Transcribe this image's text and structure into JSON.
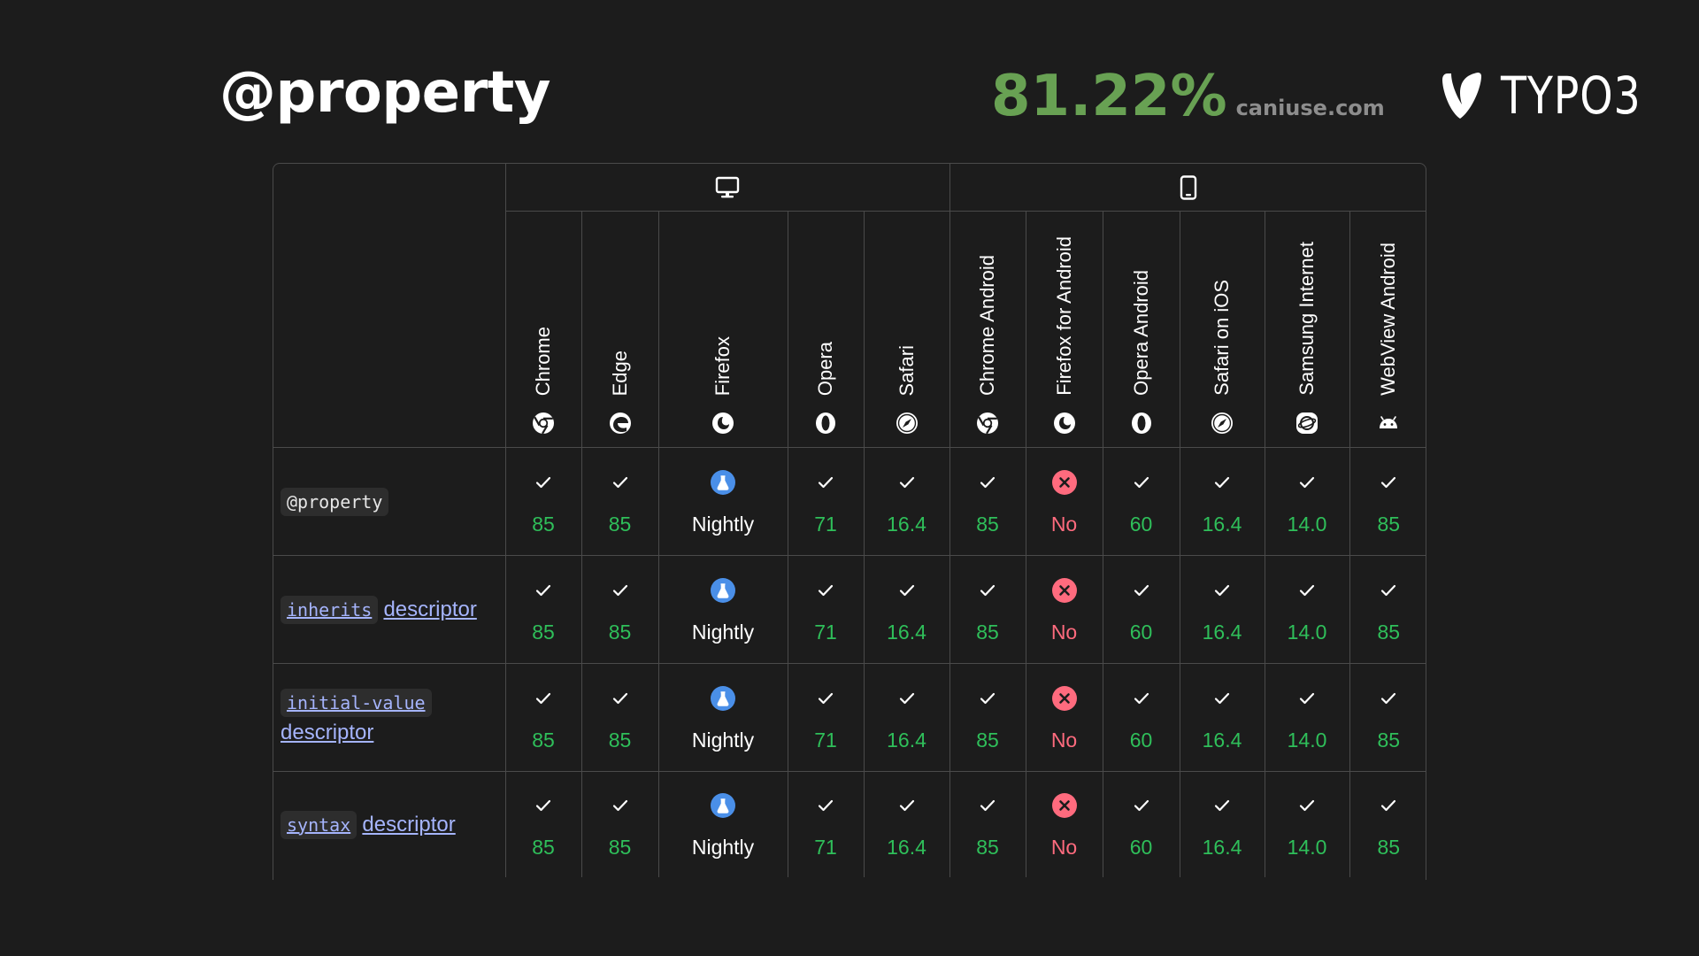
{
  "page": {
    "title": "@property",
    "stat_value": "81.22%",
    "stat_source": "caniuse.com",
    "logo_text": "TYPO3"
  },
  "colors": {
    "background": "#1c1c1c",
    "stat": "#68a153",
    "supported": "#2fbf5a",
    "unsupported": "#ff6b7e",
    "nightly_badge": "#4a8fe8",
    "link": "#a5b4fc"
  },
  "groups": [
    {
      "icon": "desktop-icon",
      "span": 5
    },
    {
      "icon": "mobile-icon",
      "span": 6
    }
  ],
  "browsers": [
    {
      "name": "Chrome",
      "icon": "chrome-icon"
    },
    {
      "name": "Edge",
      "icon": "edge-icon"
    },
    {
      "name": "Firefox",
      "icon": "firefox-icon"
    },
    {
      "name": "Opera",
      "icon": "opera-icon"
    },
    {
      "name": "Safari",
      "icon": "safari-icon"
    },
    {
      "name": "Chrome Android",
      "icon": "chrome-icon"
    },
    {
      "name": "Firefox for Android",
      "icon": "firefox-icon"
    },
    {
      "name": "Opera Android",
      "icon": "opera-icon"
    },
    {
      "name": "Safari on iOS",
      "icon": "safari-icon"
    },
    {
      "name": "Samsung Internet",
      "icon": "samsung-internet-icon"
    },
    {
      "name": "WebView Android",
      "icon": "android-icon"
    }
  ],
  "features": [
    {
      "code": "@property",
      "code_is_link": false,
      "descriptor": "",
      "support": [
        {
          "status": "yes",
          "version": "85"
        },
        {
          "status": "yes",
          "version": "85"
        },
        {
          "status": "nightly",
          "version": "Nightly"
        },
        {
          "status": "yes",
          "version": "71"
        },
        {
          "status": "yes",
          "version": "16.4"
        },
        {
          "status": "yes",
          "version": "85"
        },
        {
          "status": "no",
          "version": "No"
        },
        {
          "status": "yes",
          "version": "60"
        },
        {
          "status": "yes",
          "version": "16.4"
        },
        {
          "status": "yes",
          "version": "14.0"
        },
        {
          "status": "yes",
          "version": "85"
        }
      ]
    },
    {
      "code": "inherits",
      "code_is_link": true,
      "descriptor": "descriptor",
      "support": [
        {
          "status": "yes",
          "version": "85"
        },
        {
          "status": "yes",
          "version": "85"
        },
        {
          "status": "nightly",
          "version": "Nightly"
        },
        {
          "status": "yes",
          "version": "71"
        },
        {
          "status": "yes",
          "version": "16.4"
        },
        {
          "status": "yes",
          "version": "85"
        },
        {
          "status": "no",
          "version": "No"
        },
        {
          "status": "yes",
          "version": "60"
        },
        {
          "status": "yes",
          "version": "16.4"
        },
        {
          "status": "yes",
          "version": "14.0"
        },
        {
          "status": "yes",
          "version": "85"
        }
      ]
    },
    {
      "code": "initial-value",
      "code_is_link": true,
      "descriptor": "descriptor",
      "support": [
        {
          "status": "yes",
          "version": "85"
        },
        {
          "status": "yes",
          "version": "85"
        },
        {
          "status": "nightly",
          "version": "Nightly"
        },
        {
          "status": "yes",
          "version": "71"
        },
        {
          "status": "yes",
          "version": "16.4"
        },
        {
          "status": "yes",
          "version": "85"
        },
        {
          "status": "no",
          "version": "No"
        },
        {
          "status": "yes",
          "version": "60"
        },
        {
          "status": "yes",
          "version": "16.4"
        },
        {
          "status": "yes",
          "version": "14.0"
        },
        {
          "status": "yes",
          "version": "85"
        }
      ]
    },
    {
      "code": "syntax",
      "code_is_link": true,
      "descriptor": "descriptor",
      "support": [
        {
          "status": "yes",
          "version": "85"
        },
        {
          "status": "yes",
          "version": "85"
        },
        {
          "status": "nightly",
          "version": "Nightly"
        },
        {
          "status": "yes",
          "version": "71"
        },
        {
          "status": "yes",
          "version": "16.4"
        },
        {
          "status": "yes",
          "version": "85"
        },
        {
          "status": "no",
          "version": "No"
        },
        {
          "status": "yes",
          "version": "60"
        },
        {
          "status": "yes",
          "version": "16.4"
        },
        {
          "status": "yes",
          "version": "14.0"
        },
        {
          "status": "yes",
          "version": "85"
        }
      ]
    }
  ]
}
